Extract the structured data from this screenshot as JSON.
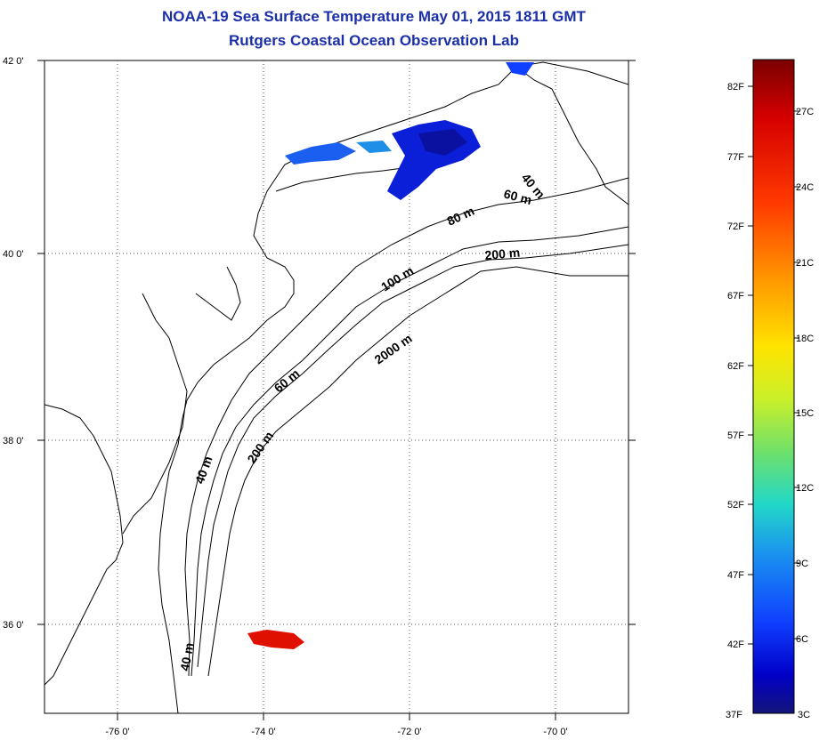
{
  "title": "NOAA-19 Sea Surface Temperature May 01, 2015 1811 GMT",
  "subtitle": "Rutgers Coastal Ocean Observation Lab",
  "map": {
    "lat_labels": [
      {
        "lat": 42,
        "text": "42 0'"
      },
      {
        "lat": 40,
        "text": "40 0'"
      },
      {
        "lat": 38,
        "text": "38 0'"
      },
      {
        "lat": 36,
        "text": "36 0'"
      }
    ],
    "lon_labels": [
      {
        "lon": -76,
        "text": "-76 0'"
      },
      {
        "lon": -74,
        "text": "-74 0'"
      },
      {
        "lon": -72,
        "text": "-72 0'"
      },
      {
        "lon": -70,
        "text": "-70 0'"
      }
    ],
    "extent": {
      "lon_min": -77,
      "lon_max": -69,
      "lat_min": 35,
      "lat_max": 42
    },
    "depth_labels": [
      "40 m",
      "60 m",
      "80 m",
      "200 m",
      "100 m",
      "2000 m",
      "60 m",
      "40 m",
      "200 m",
      "40 m"
    ]
  },
  "colorbar": {
    "f_labels": [
      "82F",
      "77F",
      "72F",
      "67F",
      "62F",
      "57F",
      "52F",
      "47F",
      "42F",
      "37F"
    ],
    "c_labels": [
      "27C",
      "24C",
      "21C",
      "18C",
      "15C",
      "12C",
      "9C",
      "6C",
      "3C"
    ],
    "colors": [
      "#7a0000",
      "#d60000",
      "#ff3a00",
      "#ff9a00",
      "#ffe400",
      "#c9f02a",
      "#6fe06a",
      "#22d8c8",
      "#1a8ff0",
      "#1040ff",
      "#0000c8",
      "#14147a"
    ]
  }
}
